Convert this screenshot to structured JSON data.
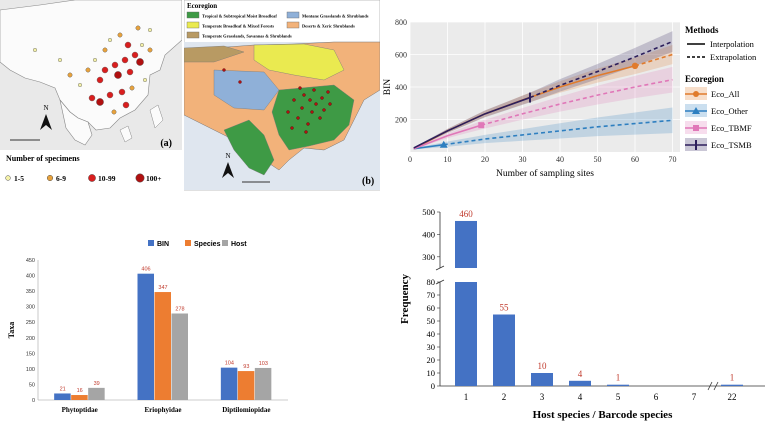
{
  "map_a": {
    "panel_label": "(a)",
    "legend_title": "Number of specimens",
    "legend_items": [
      {
        "label": "1-5",
        "color": "#f4f1a8"
      },
      {
        "label": "6-9",
        "color": "#e8a23c"
      },
      {
        "label": "10-99",
        "color": "#d91e1e"
      },
      {
        "label": "100+",
        "color": "#b01010"
      }
    ],
    "north_label": "N"
  },
  "map_b": {
    "panel_label": "(b)",
    "legend_title": "Ecoregion",
    "legend_items": [
      {
        "label": "Tropical & Subtropical Moist Broadleaf",
        "color": "#3e9a45"
      },
      {
        "label": "Montane Grasslands & Shrublands",
        "color": "#8fb0d8"
      },
      {
        "label": "Temperate Broadleaf & Mixed Forests",
        "color": "#eaea50"
      },
      {
        "label": "Deserts & Xeric Shrublands",
        "color": "#f2b27a"
      },
      {
        "label": "Temperate Grasslands, Savannas & Shrublands",
        "color": "#b89a63"
      }
    ],
    "north_label": "N"
  },
  "chart_data": [
    {
      "type": "line",
      "xlabel": "Number of sampling sites",
      "ylabel": "BIN",
      "xlim": [
        0,
        72
      ],
      "ylim": [
        0,
        800
      ],
      "x_ticks": [
        0,
        10,
        20,
        30,
        40,
        50,
        60,
        70
      ],
      "y_ticks": [
        200,
        400,
        600,
        800
      ],
      "grid": true,
      "legend_methods_title": "Methods",
      "legend_methods": [
        "Interpolation",
        "Extrapolation"
      ],
      "legend_ecoregion_title": "Ecoregion",
      "series": [
        {
          "name": "Eco_All",
          "color": "#e07b2c",
          "marker": "circle",
          "x": [
            1,
            10,
            20,
            30,
            40,
            50,
            60,
            70
          ],
          "y": [
            20,
            130,
            235,
            320,
            400,
            470,
            530,
            600
          ],
          "observed_x": 60,
          "band": 55
        },
        {
          "name": "Eco_Other",
          "color": "#2e7fc0",
          "marker": "triangle",
          "x": [
            1,
            9,
            20,
            30,
            40,
            50,
            60,
            70
          ],
          "y": [
            20,
            45,
            80,
            105,
            130,
            155,
            175,
            195
          ],
          "observed_x": 9,
          "band": 75
        },
        {
          "name": "Eco_TBMF",
          "color": "#e077b8",
          "marker": "square",
          "x": [
            1,
            10,
            19,
            30,
            40,
            50,
            60,
            70
          ],
          "y": [
            20,
            100,
            165,
            235,
            295,
            350,
            400,
            445
          ],
          "observed_x": 19,
          "band": 75
        },
        {
          "name": "Eco_TSMB",
          "color": "#2c1f5c",
          "marker": "rect",
          "x": [
            1,
            10,
            20,
            32,
            40,
            50,
            60,
            70
          ],
          "y": [
            25,
            130,
            235,
            335,
            410,
            495,
            585,
            680
          ],
          "observed_x": 32,
          "band": 60
        }
      ]
    },
    {
      "type": "bar",
      "ylabel": "Taxa",
      "categories": [
        "Phytoptidae",
        "Eriophyidae",
        "Diptilomiopidae"
      ],
      "ylim": [
        0,
        450
      ],
      "y_ticks": [
        0,
        50,
        100,
        150,
        200,
        250,
        300,
        350,
        400,
        450
      ],
      "series": [
        {
          "name": "BIN",
          "color": "#4472c4",
          "values": [
            21,
            406,
            104
          ]
        },
        {
          "name": "Species",
          "color": "#ed7d31",
          "values": [
            16,
            347,
            93
          ]
        },
        {
          "name": "Host",
          "color": "#a5a5a5",
          "values": [
            39,
            278,
            103
          ]
        }
      ],
      "value_label_color": "#c0392b"
    },
    {
      "type": "bar",
      "xlabel": "Host species / Barcode species",
      "ylabel": "Frequency",
      "categories": [
        "1",
        "2",
        "3",
        "4",
        "5",
        "6",
        "7",
        "22"
      ],
      "values": [
        460,
        55,
        10,
        4,
        1,
        0,
        0,
        1
      ],
      "value_labels": [
        "460",
        "55",
        "10",
        "4",
        "1",
        "",
        "",
        "1"
      ],
      "broken_axis": {
        "upper": [
          250,
          500
        ],
        "lower": [
          0,
          80
        ]
      },
      "y_ticks_upper": [
        300,
        400,
        500
      ],
      "y_ticks_lower": [
        0,
        10,
        20,
        30,
        40,
        50,
        60,
        70,
        80
      ],
      "color": "#4472c4",
      "value_label_color": "#c0392b"
    }
  ]
}
